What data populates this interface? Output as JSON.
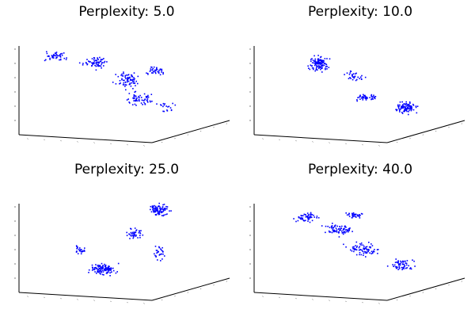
{
  "chart_data": [
    {
      "type": "scatter",
      "projection": "3d",
      "title": "Perplexity: 5.0",
      "marker_color": "#0000ff",
      "shape": "wide band from upper-left sweeping down to lower-right",
      "n_points": 300,
      "seed": 11
    },
    {
      "type": "scatter",
      "projection": "3d",
      "title": "Perplexity: 10.0",
      "marker_color": "#0000ff",
      "shape": "dense cluster upper-left, thin arc across the middle, dense cluster lower-right",
      "n_points": 300,
      "seed": 23
    },
    {
      "type": "scatter",
      "projection": "3d",
      "title": "Perplexity: 25.0",
      "marker_color": "#0000ff",
      "shape": "loop rising from a dense lower-left cluster to a dense upper-right cluster",
      "n_points": 300,
      "seed": 37
    },
    {
      "type": "scatter",
      "projection": "3d",
      "title": "Perplexity: 40.0",
      "marker_color": "#0000ff",
      "shape": "broad diffuse band from upper-left to lower-right",
      "n_points": 300,
      "seed": 53
    }
  ]
}
